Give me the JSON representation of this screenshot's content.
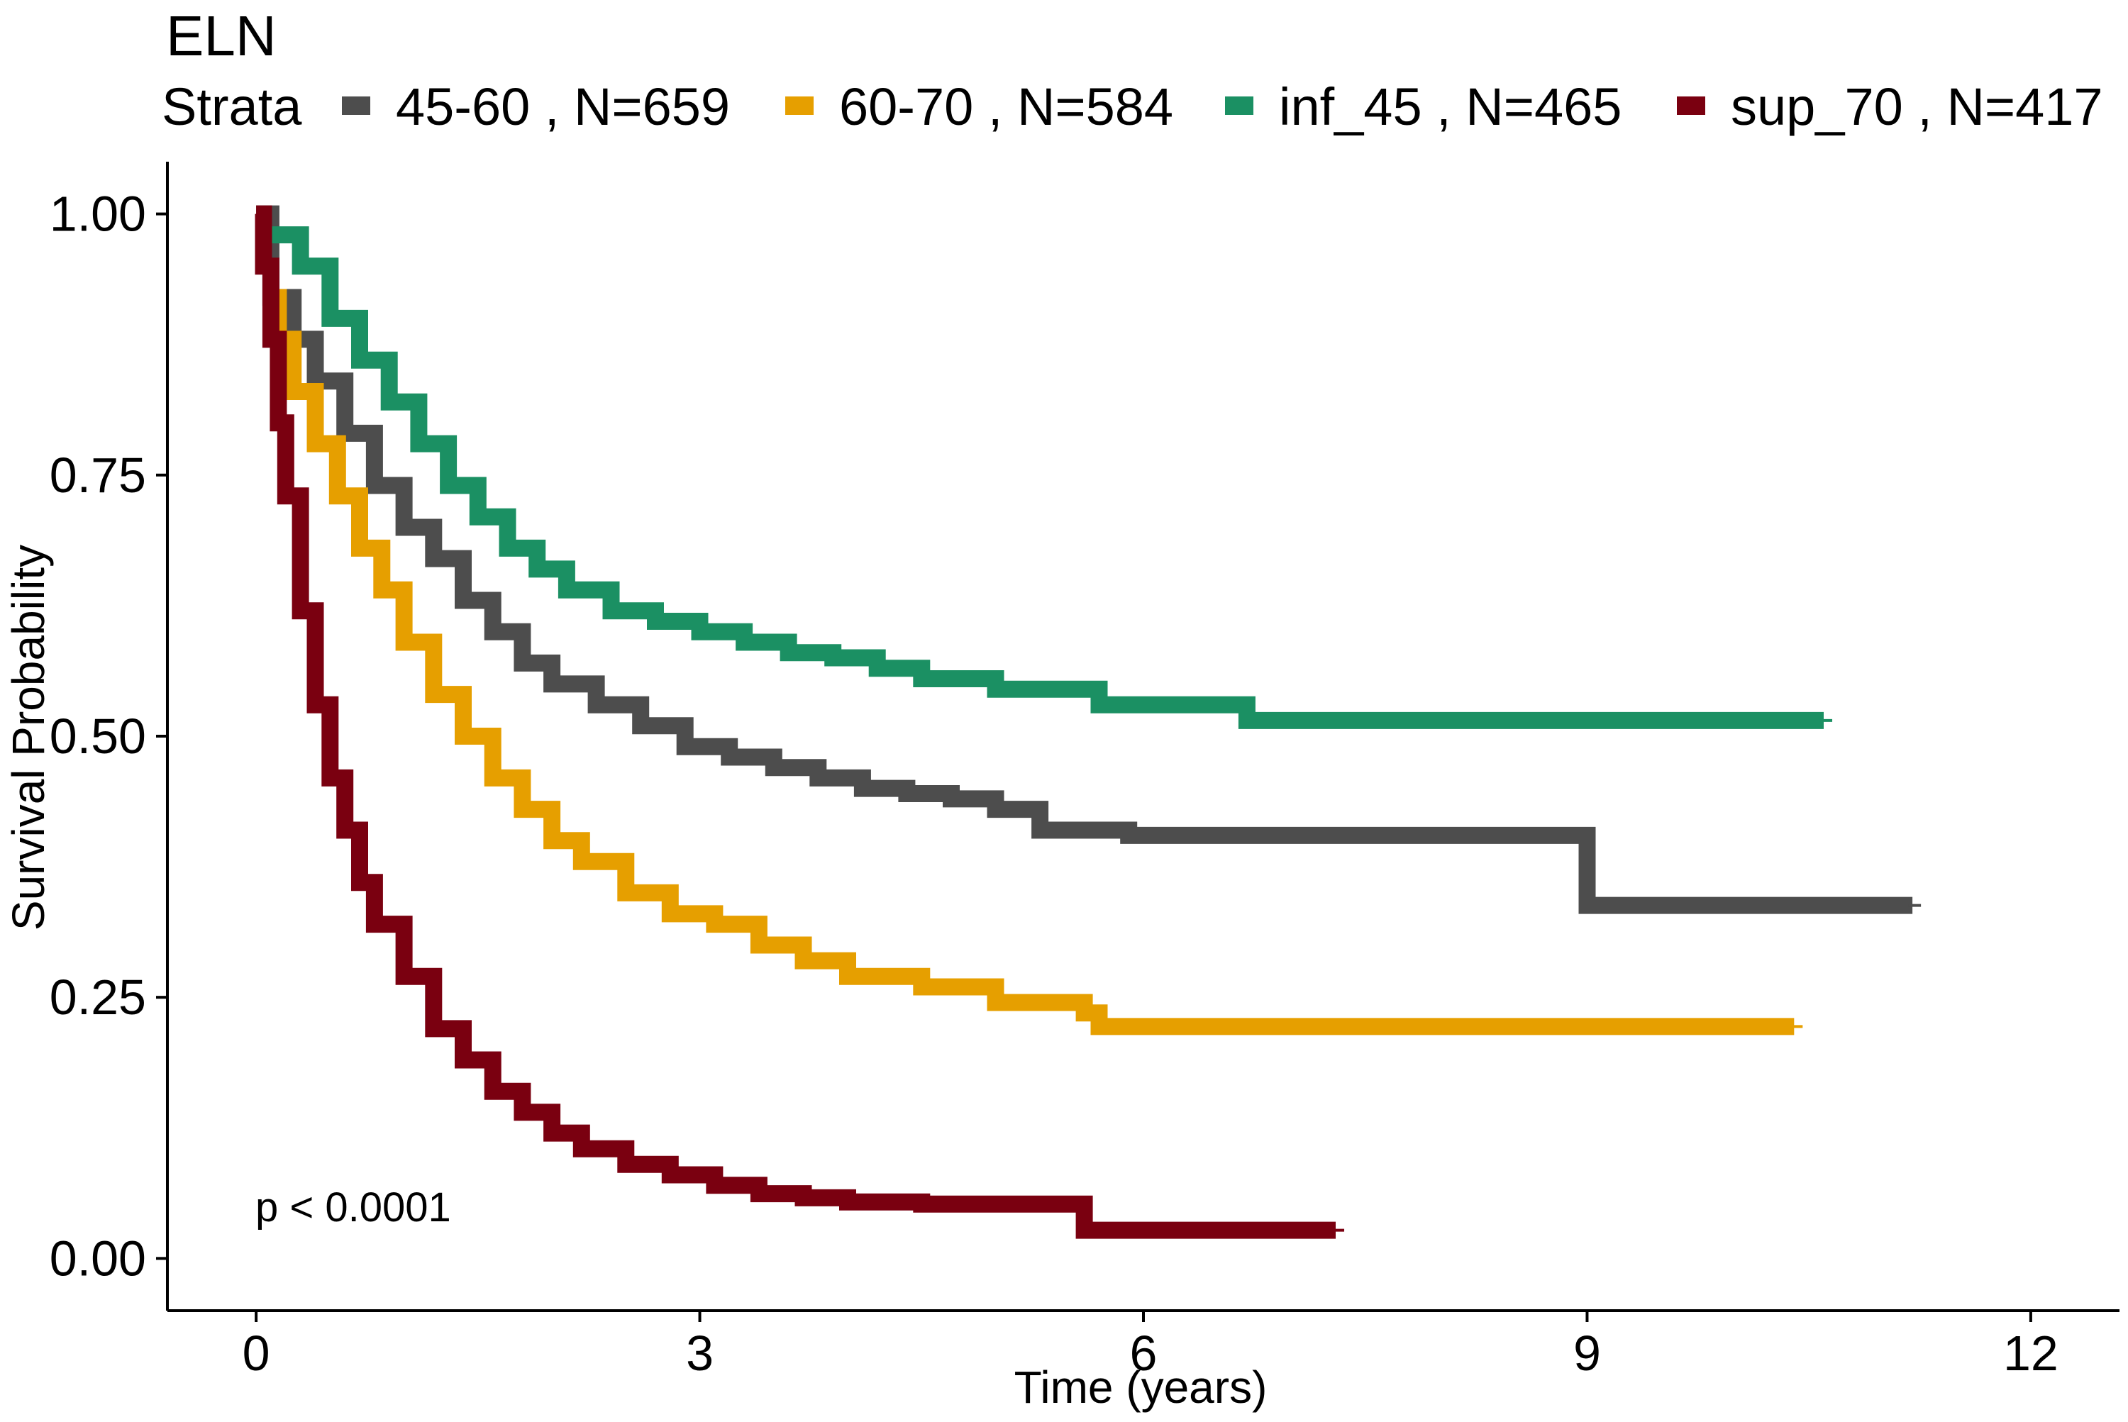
{
  "chart_data": {
    "type": "line",
    "title": "ELN",
    "xlabel": "Time (years)",
    "ylabel": "Survival Probability",
    "xlim": [
      -0.6,
      12.6
    ],
    "ylim": [
      -0.05,
      1.05
    ],
    "x_ticks": [
      0,
      3,
      6,
      9,
      12
    ],
    "x_tick_labels": [
      "0",
      "3",
      "6",
      "9",
      "12"
    ],
    "y_ticks": [
      0,
      0.25,
      0.5,
      0.75,
      1.0
    ],
    "y_tick_labels": [
      "0.00",
      "0.25",
      "0.50",
      "0.75",
      "1.00"
    ],
    "grid": false,
    "legend": {
      "title": "Strata",
      "position": "top",
      "entries": [
        "45-60 , N=659",
        "60-70 , N=584",
        "inf_45 , N=465",
        "sup_70 , N=417"
      ]
    },
    "annotation": "p < 0.0001",
    "series": [
      {
        "name": "45-60 , N=659",
        "color": "#4D4D4D",
        "x": [
          0,
          0.1,
          0.25,
          0.4,
          0.6,
          0.8,
          1.0,
          1.2,
          1.4,
          1.6,
          1.8,
          2.0,
          2.3,
          2.6,
          2.9,
          3.2,
          3.5,
          3.8,
          4.1,
          4.4,
          4.7,
          5.0,
          5.3,
          5.5,
          5.9,
          7.0,
          9.0,
          9.0,
          11.2
        ],
        "y": [
          1.0,
          0.92,
          0.88,
          0.84,
          0.79,
          0.74,
          0.7,
          0.67,
          0.63,
          0.6,
          0.57,
          0.55,
          0.53,
          0.51,
          0.49,
          0.48,
          0.47,
          0.46,
          0.45,
          0.445,
          0.44,
          0.43,
          0.41,
          0.41,
          0.405,
          0.405,
          0.405,
          0.338,
          0.338
        ],
        "censor_end": true
      },
      {
        "name": "60-70 , N=584",
        "color": "#E69F00",
        "x": [
          0.1,
          0.15,
          0.25,
          0.4,
          0.55,
          0.7,
          0.85,
          1.0,
          1.2,
          1.4,
          1.6,
          1.8,
          2.0,
          2.2,
          2.5,
          2.8,
          3.1,
          3.4,
          3.7,
          4.0,
          4.5,
          5.0,
          5.6,
          5.7,
          10.4
        ],
        "y": [
          0.92,
          0.88,
          0.83,
          0.78,
          0.73,
          0.68,
          0.64,
          0.59,
          0.54,
          0.5,
          0.46,
          0.43,
          0.4,
          0.38,
          0.35,
          0.33,
          0.32,
          0.3,
          0.285,
          0.27,
          0.26,
          0.245,
          0.235,
          0.222,
          0.222
        ],
        "censor_end": true
      },
      {
        "name": "inf_45 , N=465",
        "color": "#1B9063",
        "x": [
          0.1,
          0.3,
          0.5,
          0.7,
          0.9,
          1.1,
          1.3,
          1.5,
          1.7,
          1.9,
          2.1,
          2.4,
          2.7,
          3.0,
          3.3,
          3.6,
          3.9,
          4.2,
          4.5,
          5.0,
          5.7,
          6.7,
          6.7,
          10.6
        ],
        "y": [
          0.98,
          0.95,
          0.9,
          0.86,
          0.82,
          0.78,
          0.74,
          0.71,
          0.68,
          0.66,
          0.64,
          0.62,
          0.61,
          0.6,
          0.59,
          0.58,
          0.575,
          0.565,
          0.555,
          0.545,
          0.53,
          0.53,
          0.515,
          0.515
        ],
        "censor_end": true
      },
      {
        "name": "sup_70 , N=417",
        "color": "#7A0010",
        "x": [
          0,
          0.05,
          0.1,
          0.15,
          0.2,
          0.3,
          0.4,
          0.5,
          0.6,
          0.7,
          0.8,
          1.0,
          1.2,
          1.4,
          1.6,
          1.8,
          2.0,
          2.2,
          2.5,
          2.8,
          3.1,
          3.4,
          3.7,
          4.0,
          4.5,
          5.6,
          5.6,
          7.3
        ],
        "y": [
          1.0,
          0.95,
          0.88,
          0.8,
          0.73,
          0.62,
          0.53,
          0.46,
          0.41,
          0.36,
          0.32,
          0.27,
          0.22,
          0.19,
          0.16,
          0.14,
          0.12,
          0.105,
          0.09,
          0.08,
          0.07,
          0.062,
          0.058,
          0.054,
          0.052,
          0.052,
          0.027,
          0.027
        ],
        "censor_end": true
      }
    ]
  }
}
